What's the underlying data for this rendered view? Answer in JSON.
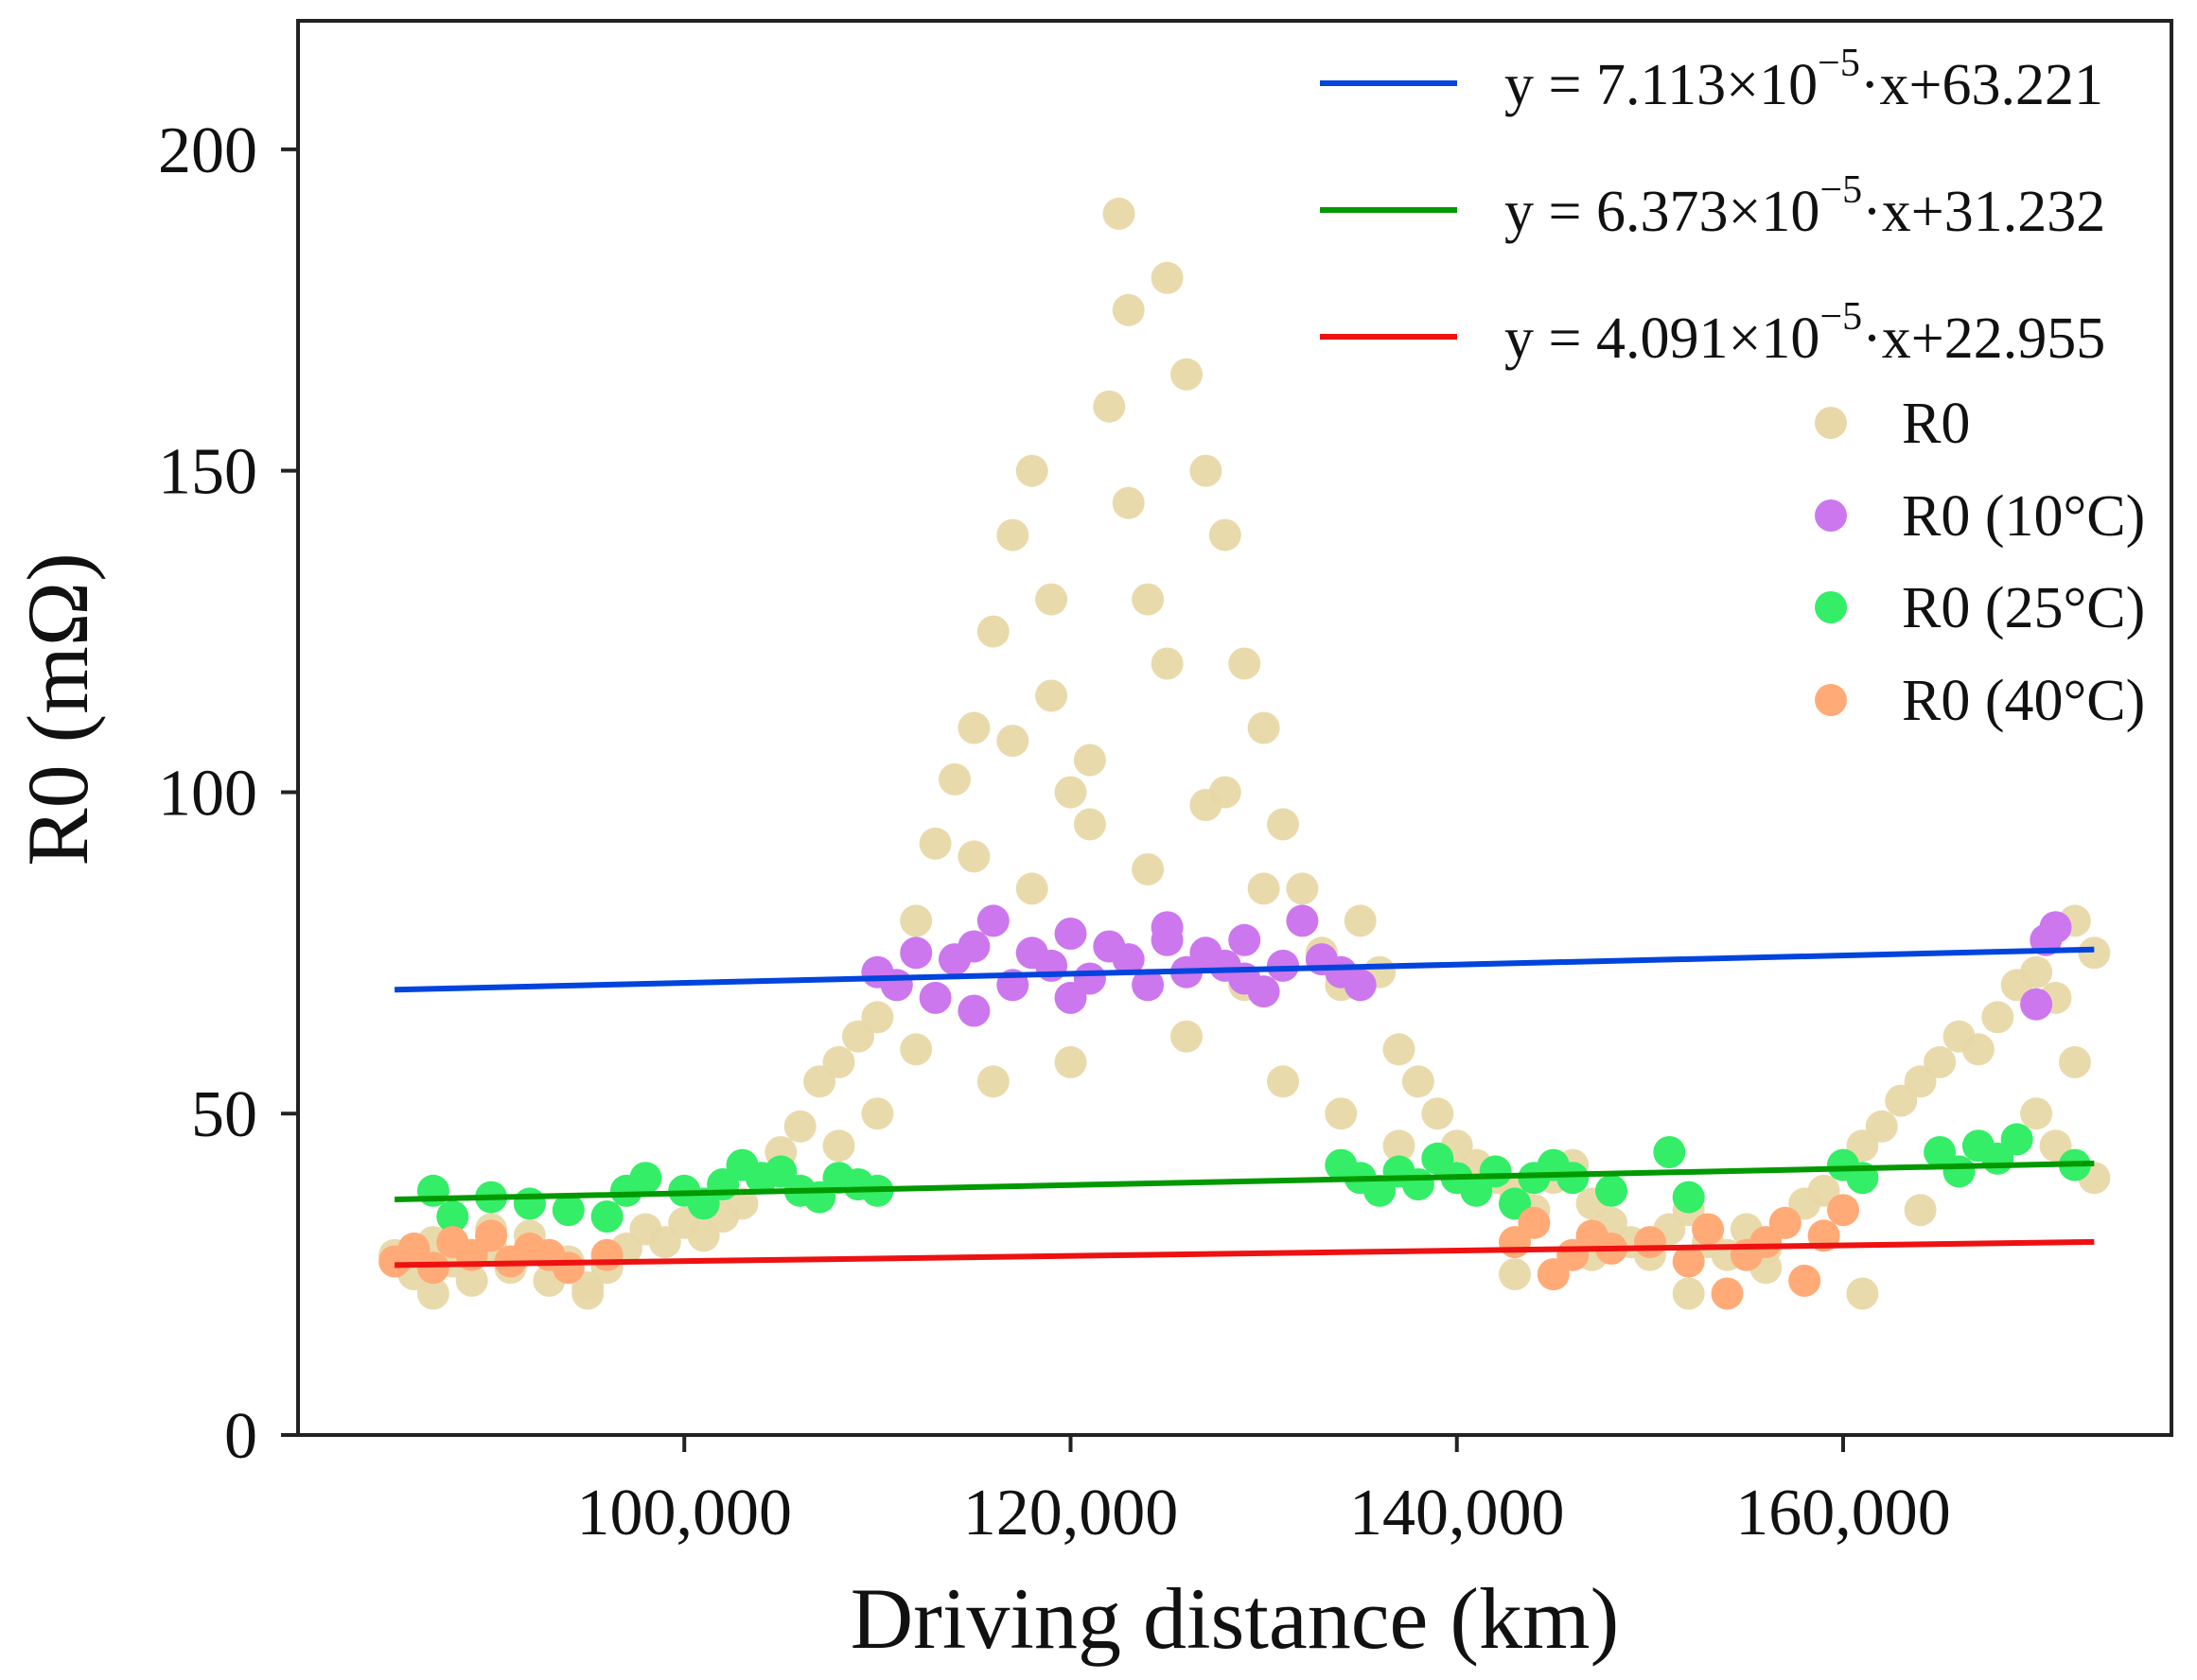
{
  "chart_data": {
    "type": "scatter",
    "title": "",
    "xlabel": "Driving distance (km)",
    "ylabel": "R0 (mΩ)",
    "xlim": [
      80000,
      177000
    ],
    "ylim": [
      0,
      220
    ],
    "x_ticks": [
      {
        "value": 100000,
        "label": "100,000"
      },
      {
        "value": 120000,
        "label": "120,000"
      },
      {
        "value": 140000,
        "label": "140,000"
      },
      {
        "value": 160000,
        "label": "160,000"
      }
    ],
    "y_ticks": [
      {
        "value": 0,
        "label": "0"
      },
      {
        "value": 50,
        "label": "50"
      },
      {
        "value": 100,
        "label": "100"
      },
      {
        "value": 150,
        "label": "150"
      },
      {
        "value": 200,
        "label": "200"
      }
    ],
    "legend_position": "top-right",
    "fit_lines": [
      {
        "name": "10°C fit",
        "color": "#0044dd",
        "slope": 7.113e-05,
        "intercept": 63.221,
        "x_range": [
          85000,
          173000
        ],
        "label_prefix": "y = 7.113×10",
        "exponent": "−5",
        "label_suffix": "·x+63.221"
      },
      {
        "name": "25°C fit",
        "color": "#009900",
        "slope": 6.373e-05,
        "intercept": 31.232,
        "x_range": [
          85000,
          173000
        ],
        "label_prefix": "y = 6.373×10",
        "exponent": "−5",
        "label_suffix": "·x+31.232"
      },
      {
        "name": "40°C fit",
        "color": "#ee1111",
        "slope": 4.091e-05,
        "intercept": 22.955,
        "x_range": [
          85000,
          173000
        ],
        "label_prefix": "y = 4.091×10",
        "exponent": "−5",
        "label_suffix": "·x+22.955"
      }
    ],
    "series": [
      {
        "name": "R0",
        "color": "#e8d8a8",
        "points": [
          [
            85000,
            28
          ],
          [
            86000,
            25
          ],
          [
            87000,
            30
          ],
          [
            88000,
            27
          ],
          [
            89000,
            24
          ],
          [
            90000,
            29
          ],
          [
            91000,
            26
          ],
          [
            92000,
            31
          ],
          [
            93000,
            24
          ],
          [
            94000,
            27
          ],
          [
            95000,
            23
          ],
          [
            96000,
            26
          ],
          [
            97000,
            29
          ],
          [
            98000,
            32
          ],
          [
            99000,
            30
          ],
          [
            100000,
            33
          ],
          [
            101000,
            31
          ],
          [
            102000,
            34
          ],
          [
            103000,
            36
          ],
          [
            104000,
            40
          ],
          [
            105000,
            44
          ],
          [
            106000,
            48
          ],
          [
            107000,
            55
          ],
          [
            108000,
            58
          ],
          [
            109000,
            62
          ],
          [
            110000,
            65
          ],
          [
            111000,
            70
          ],
          [
            112000,
            80
          ],
          [
            113000,
            92
          ],
          [
            114000,
            102
          ],
          [
            115000,
            110
          ],
          [
            116000,
            125
          ],
          [
            117000,
            140
          ],
          [
            118000,
            150
          ],
          [
            119000,
            115
          ],
          [
            120000,
            100
          ],
          [
            121000,
            105
          ],
          [
            122000,
            160
          ],
          [
            122500,
            190
          ],
          [
            123000,
            175
          ],
          [
            124000,
            130
          ],
          [
            125000,
            180
          ],
          [
            126000,
            165
          ],
          [
            127000,
            150
          ],
          [
            128000,
            140
          ],
          [
            129000,
            120
          ],
          [
            130000,
            110
          ],
          [
            131000,
            95
          ],
          [
            132000,
            85
          ],
          [
            133000,
            75
          ],
          [
            134000,
            70
          ],
          [
            135000,
            80
          ],
          [
            136000,
            72
          ],
          [
            137000,
            60
          ],
          [
            138000,
            55
          ],
          [
            139000,
            50
          ],
          [
            140000,
            45
          ],
          [
            141000,
            42
          ],
          [
            142000,
            40
          ],
          [
            143000,
            38
          ],
          [
            144000,
            35
          ],
          [
            145000,
            40
          ],
          [
            146000,
            42
          ],
          [
            147000,
            36
          ],
          [
            148000,
            33
          ],
          [
            149000,
            30
          ],
          [
            150000,
            28
          ],
          [
            151000,
            32
          ],
          [
            152000,
            35
          ],
          [
            153000,
            30
          ],
          [
            154000,
            28
          ],
          [
            155000,
            32
          ],
          [
            156000,
            29
          ],
          [
            157000,
            33
          ],
          [
            158000,
            36
          ],
          [
            159000,
            38
          ],
          [
            160000,
            42
          ],
          [
            161000,
            45
          ],
          [
            162000,
            48
          ],
          [
            163000,
            52
          ],
          [
            164000,
            55
          ],
          [
            165000,
            58
          ],
          [
            166000,
            62
          ],
          [
            167000,
            60
          ],
          [
            168000,
            65
          ],
          [
            169000,
            70
          ],
          [
            170000,
            72
          ],
          [
            171000,
            68
          ],
          [
            172000,
            80
          ],
          [
            173000,
            75
          ],
          [
            115000,
            90
          ],
          [
            118000,
            85
          ],
          [
            121000,
            95
          ],
          [
            124000,
            88
          ],
          [
            127000,
            98
          ],
          [
            130000,
            85
          ],
          [
            112000,
            60
          ],
          [
            116000,
            55
          ],
          [
            120000,
            58
          ],
          [
            126000,
            62
          ],
          [
            131000,
            55
          ],
          [
            134000,
            50
          ],
          [
            137000,
            45
          ],
          [
            110000,
            50
          ],
          [
            108000,
            45
          ],
          [
            125000,
            120
          ],
          [
            119000,
            130
          ],
          [
            128000,
            100
          ],
          [
            123000,
            145
          ],
          [
            117000,
            108
          ],
          [
            129000,
            70
          ],
          [
            95000,
            22
          ],
          [
            90000,
            32
          ],
          [
            87000,
            22
          ],
          [
            143000,
            25
          ],
          [
            147000,
            28
          ],
          [
            152000,
            22
          ],
          [
            156000,
            26
          ],
          [
            161000,
            22
          ],
          [
            164000,
            35
          ],
          [
            170000,
            50
          ],
          [
            171000,
            45
          ],
          [
            172000,
            58
          ],
          [
            173000,
            40
          ]
        ]
      },
      {
        "name": "R0 (10°C)",
        "color": "#cc77ee",
        "points": [
          [
            110000,
            72
          ],
          [
            111000,
            70
          ],
          [
            112000,
            75
          ],
          [
            113000,
            68
          ],
          [
            114000,
            74
          ],
          [
            115000,
            76
          ],
          [
            116000,
            80
          ],
          [
            117000,
            70
          ],
          [
            118000,
            75
          ],
          [
            119000,
            73
          ],
          [
            120000,
            78
          ],
          [
            121000,
            71
          ],
          [
            122000,
            76
          ],
          [
            123000,
            74
          ],
          [
            124000,
            70
          ],
          [
            125000,
            77
          ],
          [
            126000,
            72
          ],
          [
            127000,
            75
          ],
          [
            128000,
            73
          ],
          [
            129000,
            71
          ],
          [
            130000,
            69
          ],
          [
            131000,
            73
          ],
          [
            132000,
            80
          ],
          [
            133000,
            74
          ],
          [
            134000,
            72
          ],
          [
            135000,
            70
          ],
          [
            115000,
            66
          ],
          [
            120000,
            68
          ],
          [
            125000,
            79
          ],
          [
            129000,
            77
          ],
          [
            170000,
            67
          ],
          [
            170500,
            77
          ],
          [
            171000,
            79
          ]
        ]
      },
      {
        "name": "R0 (25°C)",
        "color": "#33ee66",
        "points": [
          [
            87000,
            38
          ],
          [
            88000,
            34
          ],
          [
            90000,
            37
          ],
          [
            92000,
            36
          ],
          [
            94000,
            35
          ],
          [
            96000,
            34
          ],
          [
            97000,
            38
          ],
          [
            98000,
            40
          ],
          [
            100000,
            38
          ],
          [
            101000,
            36
          ],
          [
            102000,
            39
          ],
          [
            103000,
            42
          ],
          [
            104000,
            40
          ],
          [
            105000,
            41
          ],
          [
            106000,
            38
          ],
          [
            107000,
            37
          ],
          [
            108000,
            40
          ],
          [
            109000,
            39
          ],
          [
            110000,
            38
          ],
          [
            134000,
            42
          ],
          [
            135000,
            40
          ],
          [
            136000,
            38
          ],
          [
            137000,
            41
          ],
          [
            138000,
            39
          ],
          [
            139000,
            43
          ],
          [
            140000,
            40
          ],
          [
            141000,
            38
          ],
          [
            142000,
            41
          ],
          [
            143000,
            36
          ],
          [
            144000,
            40
          ],
          [
            145000,
            42
          ],
          [
            146000,
            40
          ],
          [
            148000,
            38
          ],
          [
            151000,
            44
          ],
          [
            152000,
            37
          ],
          [
            160000,
            42
          ],
          [
            161000,
            40
          ],
          [
            165000,
            44
          ],
          [
            166000,
            41
          ],
          [
            167000,
            45
          ],
          [
            168000,
            43
          ],
          [
            169000,
            46
          ],
          [
            172000,
            42
          ]
        ]
      },
      {
        "name": "R0 (40°C)",
        "color": "#ffaa77",
        "points": [
          [
            85000,
            27
          ],
          [
            86000,
            29
          ],
          [
            87000,
            26
          ],
          [
            88000,
            30
          ],
          [
            89000,
            28
          ],
          [
            90000,
            31
          ],
          [
            91000,
            27
          ],
          [
            92000,
            29
          ],
          [
            93000,
            28
          ],
          [
            94000,
            26
          ],
          [
            96000,
            28
          ],
          [
            143000,
            30
          ],
          [
            144000,
            33
          ],
          [
            145000,
            25
          ],
          [
            146000,
            28
          ],
          [
            147000,
            31
          ],
          [
            148000,
            29
          ],
          [
            150000,
            30
          ],
          [
            152000,
            27
          ],
          [
            153000,
            32
          ],
          [
            154000,
            22
          ],
          [
            155000,
            28
          ],
          [
            156000,
            30
          ],
          [
            157000,
            33
          ],
          [
            158000,
            24
          ],
          [
            159000,
            31
          ],
          [
            160000,
            35
          ]
        ]
      }
    ]
  }
}
